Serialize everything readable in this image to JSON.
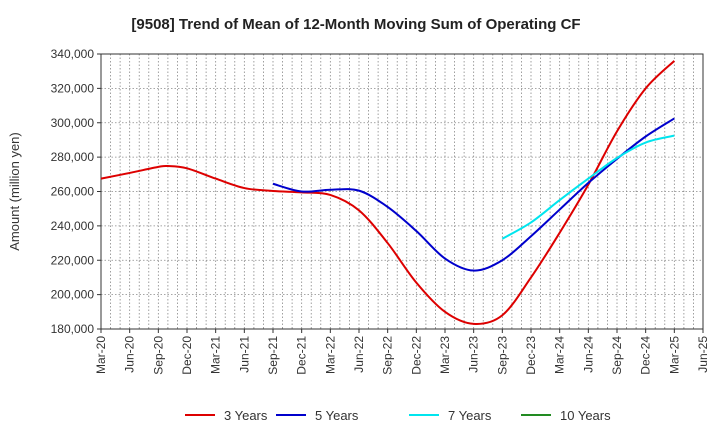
{
  "chart_data": {
    "type": "line",
    "title": "[9508]  Trend of Mean of 12-Month Moving Sum of Operating CF",
    "xlabel": "",
    "ylabel": "Amount (million yen)",
    "ylim": [
      180000,
      340000
    ],
    "yticks": [
      180000,
      200000,
      220000,
      240000,
      260000,
      280000,
      300000,
      320000,
      340000
    ],
    "ytick_labels": [
      "180,000",
      "200,000",
      "220,000",
      "240,000",
      "260,000",
      "280,000",
      "300,000",
      "320,000",
      "340,000"
    ],
    "x_start": "2020-03",
    "x_end": "2025-06",
    "x_tick_labels": [
      "Mar-20",
      "Jun-20",
      "Sep-20",
      "Dec-20",
      "Mar-21",
      "Jun-21",
      "Sep-21",
      "Dec-21",
      "Mar-22",
      "Jun-22",
      "Sep-22",
      "Dec-22",
      "Mar-23",
      "Jun-23",
      "Sep-23",
      "Dec-23",
      "Mar-24",
      "Jun-24",
      "Sep-24",
      "Dec-24",
      "Mar-25",
      "Jun-25"
    ],
    "grid": true,
    "legend_position": "bottom",
    "series": [
      {
        "name": "3 Years",
        "color": "#dd0000",
        "x": [
          "2020-03",
          "2020-06",
          "2020-09",
          "2020-10",
          "2020-12",
          "2021-03",
          "2021-06",
          "2021-09",
          "2021-12",
          "2022-03",
          "2022-06",
          "2022-09",
          "2022-12",
          "2023-03",
          "2023-06",
          "2023-09",
          "2023-12",
          "2024-03",
          "2024-06",
          "2024-09",
          "2024-12",
          "2025-03"
        ],
        "values": [
          267500,
          270800,
          274300,
          274800,
          273500,
          267500,
          262000,
          260300,
          259500,
          258000,
          249000,
          230000,
          207000,
          190000,
          183000,
          188000,
          210000,
          236000,
          264000,
          295000,
          320000,
          336000
        ]
      },
      {
        "name": "5 Years",
        "color": "#0000cc",
        "x": [
          "2021-09",
          "2021-12",
          "2022-03",
          "2022-06",
          "2022-09",
          "2022-12",
          "2023-03",
          "2023-06",
          "2023-09",
          "2023-12",
          "2024-03",
          "2024-06",
          "2024-09",
          "2024-12",
          "2025-03"
        ],
        "values": [
          264500,
          260000,
          261000,
          260500,
          251000,
          237000,
          221000,
          214000,
          220000,
          234000,
          249500,
          265000,
          279000,
          292000,
          302500
        ]
      },
      {
        "name": "7 Years",
        "color": "#00e5ee",
        "x": [
          "2023-09",
          "2023-12",
          "2024-03",
          "2024-06",
          "2024-09",
          "2024-12",
          "2025-03"
        ],
        "values": [
          232500,
          242000,
          255000,
          267500,
          279500,
          288500,
          292500
        ]
      },
      {
        "name": "10 Years",
        "color": "#228b22",
        "x": [],
        "values": []
      }
    ]
  }
}
